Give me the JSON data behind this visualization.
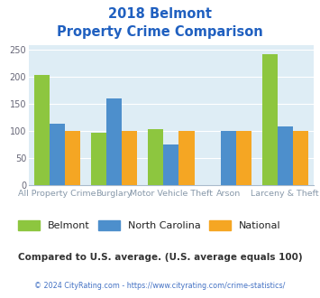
{
  "title_line1": "2018 Belmont",
  "title_line2": "Property Crime Comparison",
  "title_color": "#2060c0",
  "categories": [
    "All Property Crime",
    "Burglary",
    "Motor Vehicle Theft",
    "Arson",
    "Larceny & Theft"
  ],
  "cat_labels_top": [
    "",
    "Burglary",
    "",
    "Arson",
    ""
  ],
  "cat_labels_bottom": [
    "All Property Crime",
    "",
    "Motor Vehicle Theft",
    "",
    "Larceny & Theft"
  ],
  "belmont": [
    204,
    97,
    103,
    0,
    242
  ],
  "north_carolina": [
    113,
    160,
    75,
    100,
    108
  ],
  "national": [
    100,
    100,
    100,
    100,
    100
  ],
  "belmont_color": "#8dc63f",
  "north_carolina_color": "#4d8fcc",
  "national_color": "#f5a623",
  "figure_bg": "#ffffff",
  "plot_bg_color": "#deedf5",
  "ylim": [
    0,
    260
  ],
  "yticks": [
    0,
    50,
    100,
    150,
    200,
    250
  ],
  "legend_labels": [
    "Belmont",
    "North Carolina",
    "National"
  ],
  "note_text": "Compared to U.S. average. (U.S. average equals 100)",
  "note_color": "#333333",
  "copyright_text": "© 2024 CityRating.com - https://www.cityrating.com/crime-statistics/",
  "copyright_color": "#4472c4",
  "grid_color": "#ffffff",
  "tick_label_color": "#8899aa",
  "bar_width": 0.27
}
